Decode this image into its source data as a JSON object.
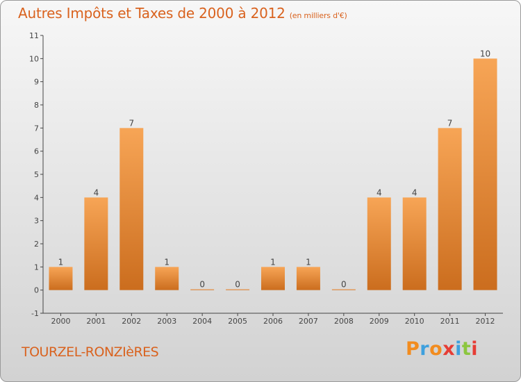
{
  "header": {
    "title": "Autres Impôts et Taxes de 2000 à 2012",
    "unit": "(en milliers d'€)"
  },
  "footer": {
    "place": "TOURZEL-RONZIèRES",
    "brand": "Proxiti"
  },
  "colors": {
    "title": "#d9621e",
    "bar_light": "#f7a556",
    "bar_dark": "#cb6d1e",
    "brand_letters": [
      "#f28c1f",
      "#3ea0de",
      "#f28c1f",
      "#e63d35",
      "#3ea0de",
      "#8cc63f",
      "#e63d35"
    ]
  },
  "chart_data": {
    "type": "bar",
    "title": "Autres Impôts et Taxes de 2000 à 2012",
    "subtitle": "(en milliers d'€)",
    "categories": [
      "2000",
      "2001",
      "2002",
      "2003",
      "2004",
      "2005",
      "2006",
      "2007",
      "2008",
      "2009",
      "2010",
      "2011",
      "2012"
    ],
    "values": [
      1,
      4,
      7,
      1,
      0,
      0,
      1,
      1,
      0,
      4,
      4,
      7,
      10
    ],
    "ylim": [
      -1,
      11
    ],
    "yticks": [
      -1,
      0,
      1,
      2,
      3,
      4,
      5,
      6,
      7,
      8,
      9,
      10,
      11
    ],
    "grid": false,
    "legend": "none"
  }
}
